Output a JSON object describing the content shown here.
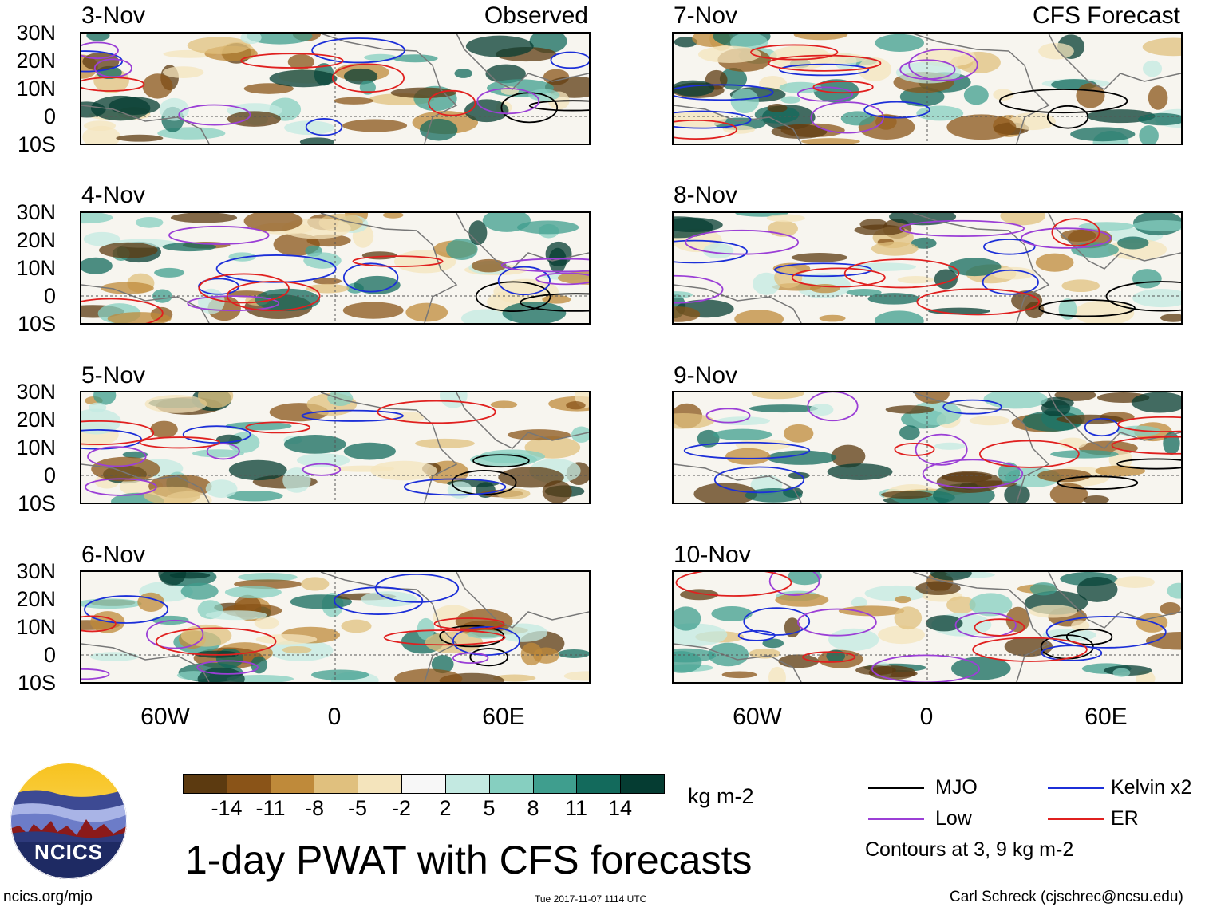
{
  "panels_left": [
    {
      "date": "3-Nov",
      "kind": "Observed"
    },
    {
      "date": "4-Nov",
      "kind": ""
    },
    {
      "date": "5-Nov",
      "kind": ""
    },
    {
      "date": "6-Nov",
      "kind": ""
    }
  ],
  "panels_right": [
    {
      "date": "7-Nov",
      "kind": "CFS Forecast"
    },
    {
      "date": "8-Nov",
      "kind": ""
    },
    {
      "date": "9-Nov",
      "kind": ""
    },
    {
      "date": "10-Nov",
      "kind": ""
    }
  ],
  "lat_labels": [
    "30N",
    "20N",
    "10N",
    "0",
    "10S"
  ],
  "lon_labels": [
    "60W",
    "0",
    "60E"
  ],
  "colorbar": {
    "colors": [
      "#5c3a10",
      "#8a5418",
      "#bf8a3a",
      "#e0c07e",
      "#f4e4bc",
      "#f7f7f7",
      "#c3e9e1",
      "#86cfc0",
      "#3f9e8e",
      "#136a5c",
      "#053c32"
    ],
    "labels": [
      "-14",
      "-11",
      "-8",
      "-5",
      "-2",
      "2",
      "5",
      "8",
      "11",
      "14"
    ],
    "units": "kg m-2"
  },
  "legend": {
    "items": [
      {
        "label": "MJO",
        "color": "#000000"
      },
      {
        "label": "Kelvin x2",
        "color": "#1c2fd8"
      },
      {
        "label": "Low",
        "color": "#9b3fd6"
      },
      {
        "label": "ER",
        "color": "#e0201f"
      }
    ],
    "note": "Contours at 3, 9 kg m-2"
  },
  "title": "1-day PWAT with CFS forecasts",
  "logo_text": "NCICS",
  "footer": {
    "left": "ncics.org/mjo",
    "center": "Tue 2017-11-07 1114 UTC",
    "right": "Carl Schreck (cjschrec@ncsu.edu)"
  }
}
